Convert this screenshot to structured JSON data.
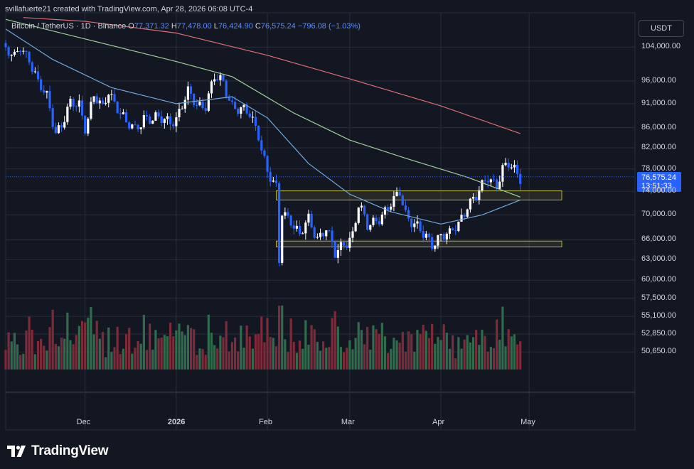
{
  "header": {
    "attribution": "svillafuerte21 created with TradingView.com, Apr 28, 2026 06:08 UTC-4"
  },
  "legend": {
    "symbol": "Bitcoin / TetherUS · 1D · Binance",
    "open_label": "O",
    "open": "77,371.32",
    "high_label": "H",
    "high": "77,478.00",
    "low_label": "L",
    "low": "76,424.90",
    "close_label": "C",
    "close": "76,575.24",
    "change": "−796.08 (−1.03%)"
  },
  "currency_button": "USDT",
  "last_price": {
    "price": "76,575.24",
    "countdown": "13:51:33"
  },
  "brand": {
    "logo_text": "TradingView",
    "logo_icon": "tradingview-logo-icon"
  },
  "colors": {
    "background": "#131722",
    "grid": "#2a2e39",
    "up": "#ffffff",
    "down": "#2962ff",
    "vol_up": "#2f6b4c",
    "vol_down": "#7c2b3a",
    "ma_short": "#6fa8dc",
    "ma_mid": "#9fcf9a",
    "ma_long": "#e06c75",
    "range_box": "#b8b040",
    "last_price": "#2962ff"
  },
  "chart_data": {
    "type": "candlestick",
    "title": "Bitcoin / TetherUS · 1D · Binance",
    "y_scale": "log",
    "y_ticks": [
      104000,
      96000,
      91000,
      86000,
      82000,
      78000,
      74000,
      70000,
      66000,
      63000,
      60000,
      57500,
      55100,
      52850,
      50650
    ],
    "y_tick_labels": [
      "104,000.00",
      "96,000.00",
      "91,000.00",
      "86,000.00",
      "82,000.00",
      "78,000.00",
      "74,000.00",
      "70,000.00",
      "66,000.00",
      "63,000.00",
      "60,000.00",
      "57,500.00",
      "55,100.00",
      "52,850.00",
      "50,650.00"
    ],
    "x_ticks": [
      "Dec",
      "2026",
      "Feb",
      "Mar",
      "Apr",
      "May"
    ],
    "x_tick_dates": [
      "2025-12-01",
      "2026-01-01",
      "2026-02-01",
      "2026-03-01",
      "2026-04-01",
      "2026-05-01"
    ],
    "x_range": [
      "2025-11-04",
      "2026-06-06"
    ],
    "ylim": [
      48600,
      112000
    ],
    "last_price": 76575.24,
    "close_path": [
      [
        "2025-11-04",
        103000
      ],
      [
        "2025-11-07",
        101000
      ],
      [
        "2025-11-09",
        104500
      ],
      [
        "2025-11-12",
        101500
      ],
      [
        "2025-11-15",
        95000
      ],
      [
        "2025-11-18",
        92500
      ],
      [
        "2025-11-21",
        85500
      ],
      [
        "2025-11-23",
        86500
      ],
      [
        "2025-11-26",
        90500
      ],
      [
        "2025-11-29",
        91000
      ],
      [
        "2025-12-01",
        86500
      ],
      [
        "2025-12-04",
        92500
      ],
      [
        "2025-12-07",
        89500
      ],
      [
        "2025-12-09",
        94000
      ],
      [
        "2025-12-12",
        90500
      ],
      [
        "2025-12-15",
        86500
      ],
      [
        "2025-12-18",
        85500
      ],
      [
        "2025-12-21",
        88500
      ],
      [
        "2025-12-24",
        87500
      ],
      [
        "2025-12-28",
        87500
      ],
      [
        "2026-01-01",
        88000
      ],
      [
        "2026-01-05",
        93000
      ],
      [
        "2026-01-08",
        91000
      ],
      [
        "2026-01-11",
        91000
      ],
      [
        "2026-01-14",
        96500
      ],
      [
        "2026-01-17",
        95500
      ],
      [
        "2026-01-20",
        91000
      ],
      [
        "2026-01-23",
        89500
      ],
      [
        "2026-01-26",
        88500
      ],
      [
        "2026-01-29",
        85000
      ],
      [
        "2026-02-01",
        77500
      ],
      [
        "2026-02-04",
        74000
      ],
      [
        "2026-02-05",
        62500
      ],
      [
        "2026-02-06",
        70500
      ],
      [
        "2026-02-09",
        69500
      ],
      [
        "2026-02-12",
        66500
      ],
      [
        "2026-02-15",
        69000
      ],
      [
        "2026-02-18",
        66500
      ],
      [
        "2026-02-21",
        68000
      ],
      [
        "2026-02-24",
        63500
      ],
      [
        "2026-02-27",
        65500
      ],
      [
        "2026-03-02",
        67000
      ],
      [
        "2026-03-04",
        71500
      ],
      [
        "2026-03-07",
        68000
      ],
      [
        "2026-03-10",
        69500
      ],
      [
        "2026-03-13",
        70500
      ],
      [
        "2026-03-16",
        72000
      ],
      [
        "2026-03-18",
        74000
      ],
      [
        "2026-03-20",
        70500
      ],
      [
        "2026-03-23",
        68500
      ],
      [
        "2026-03-26",
        66500
      ],
      [
        "2026-03-29",
        65500
      ],
      [
        "2026-04-01",
        67000
      ],
      [
        "2026-04-04",
        66500
      ],
      [
        "2026-04-07",
        68500
      ],
      [
        "2026-04-10",
        72000
      ],
      [
        "2026-04-13",
        73000
      ],
      [
        "2026-04-15",
        74500
      ],
      [
        "2026-04-17",
        76500
      ],
      [
        "2026-04-20",
        75500
      ],
      [
        "2026-04-22",
        78000
      ],
      [
        "2026-04-24",
        78500
      ],
      [
        "2026-04-26",
        77500
      ],
      [
        "2026-04-28",
        76575
      ]
    ],
    "ma_short_path": [
      [
        "2025-11-04",
        108500
      ],
      [
        "2025-11-20",
        101000
      ],
      [
        "2025-12-10",
        94500
      ],
      [
        "2026-01-01",
        91000
      ],
      [
        "2026-01-20",
        92500
      ],
      [
        "2026-02-01",
        88000
      ],
      [
        "2026-02-15",
        79000
      ],
      [
        "2026-03-01",
        73500
      ],
      [
        "2026-03-15",
        70500
      ],
      [
        "2026-04-01",
        68500
      ],
      [
        "2026-04-15",
        70000
      ],
      [
        "2026-04-28",
        72500
      ]
    ],
    "ma_mid_path": [
      [
        "2025-11-04",
        111000
      ],
      [
        "2025-12-01",
        106000
      ],
      [
        "2026-01-01",
        100500
      ],
      [
        "2026-01-20",
        97000
      ],
      [
        "2026-02-10",
        89000
      ],
      [
        "2026-03-01",
        83500
      ],
      [
        "2026-03-20",
        80000
      ],
      [
        "2026-04-10",
        76500
      ],
      [
        "2026-04-28",
        73000
      ]
    ],
    "ma_long_path": [
      [
        "2025-11-10",
        111500
      ],
      [
        "2025-12-01",
        110500
      ],
      [
        "2026-01-01",
        107500
      ],
      [
        "2026-02-01",
        102000
      ],
      [
        "2026-03-01",
        96500
      ],
      [
        "2026-04-01",
        90500
      ],
      [
        "2026-04-28",
        84800
      ]
    ],
    "range_boxes": [
      {
        "from": "2026-02-04",
        "to": "2026-06-06",
        "top": 74100,
        "bottom": 72500
      },
      {
        "from": "2026-02-04",
        "to": "2026-06-06",
        "top": 65800,
        "bottom": 64900
      }
    ]
  }
}
